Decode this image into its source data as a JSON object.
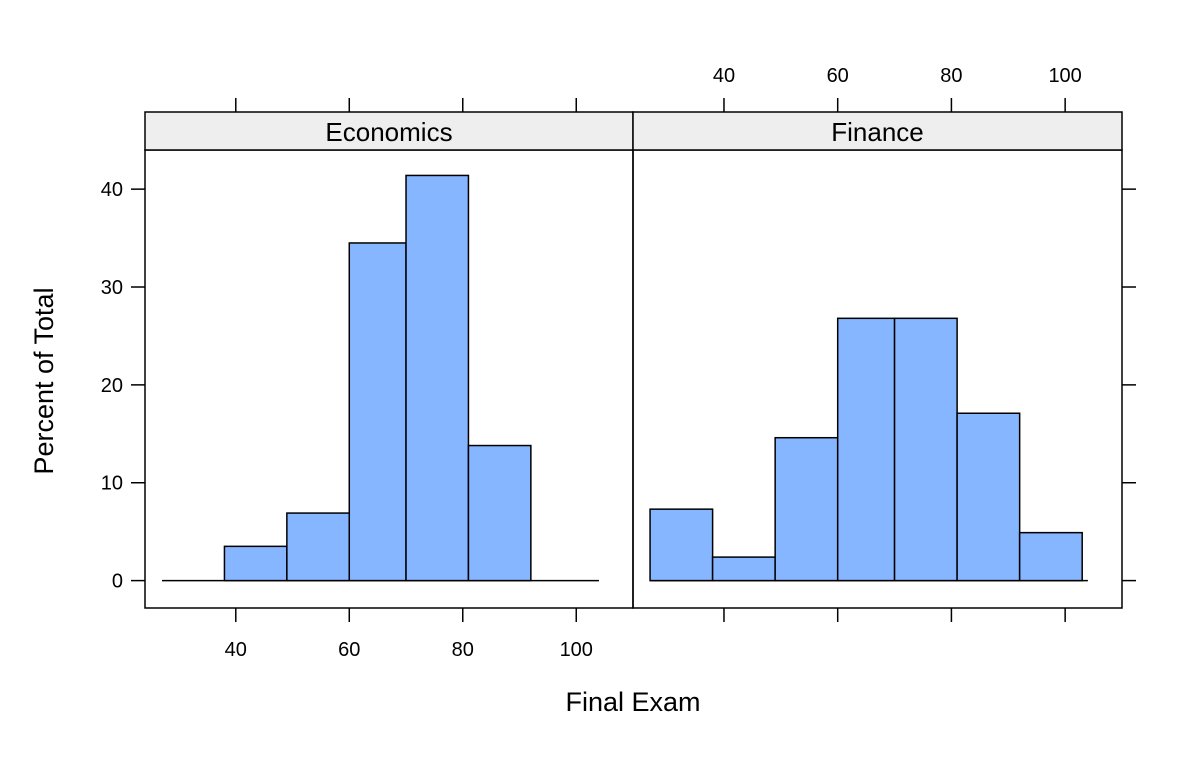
{
  "chart_data": {
    "type": "bar",
    "subtype": "histogram",
    "layout": "two panels side by side",
    "xlabel": "Final Exam",
    "ylabel": "Percent of Total",
    "xlim": [
      24,
      110
    ],
    "ylim": [
      -2.8,
      44
    ],
    "x_ticks": [
      40,
      60,
      80,
      100
    ],
    "y_ticks": [
      0,
      10,
      20,
      30,
      40
    ],
    "bar_color": "#86b6ff",
    "strip_color": "#eeeeee",
    "panels": [
      {
        "name": "Economics",
        "baseline_range": [
          27,
          104
        ],
        "bins": [
          {
            "x0": 38,
            "x1": 49,
            "percent": 3.5
          },
          {
            "x0": 49,
            "x1": 60,
            "percent": 6.9
          },
          {
            "x0": 60,
            "x1": 70,
            "percent": 34.5
          },
          {
            "x0": 70,
            "x1": 81,
            "percent": 41.4
          },
          {
            "x0": 81,
            "x1": 92,
            "percent": 13.8
          }
        ]
      },
      {
        "name": "Finance",
        "baseline_range": [
          27,
          104
        ],
        "bins": [
          {
            "x0": 27,
            "x1": 38,
            "percent": 7.3
          },
          {
            "x0": 38,
            "x1": 49,
            "percent": 2.4
          },
          {
            "x0": 49,
            "x1": 60,
            "percent": 14.6
          },
          {
            "x0": 60,
            "x1": 70,
            "percent": 26.8
          },
          {
            "x0": 70,
            "x1": 81,
            "percent": 26.8
          },
          {
            "x0": 81,
            "x1": 92,
            "percent": 17.1
          },
          {
            "x0": 92,
            "x1": 103,
            "percent": 4.9
          }
        ]
      }
    ]
  }
}
